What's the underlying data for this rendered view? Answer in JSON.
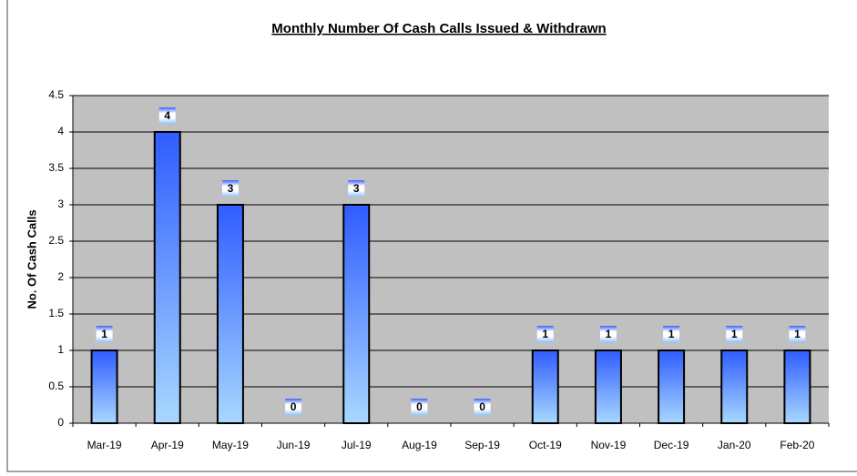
{
  "chart_data": {
    "type": "bar",
    "title": "Monthly Number Of Cash Calls Issued & Withdrawn",
    "y_label": "No. Of Cash Calls",
    "categories": [
      "Mar-19",
      "Apr-19",
      "May-19",
      "Jun-19",
      "Jul-19",
      "Aug-19",
      "Sep-19",
      "Oct-19",
      "Nov-19",
      "Dec-19",
      "Jan-20",
      "Feb-20"
    ],
    "values": [
      1,
      4,
      3,
      0,
      3,
      0,
      0,
      1,
      1,
      1,
      1,
      1
    ],
    "color": "#2f5cff",
    "ylim": [
      0,
      4.5
    ],
    "yticks": [
      0,
      0.5,
      1,
      1.5,
      2,
      2.5,
      3,
      3.5,
      4,
      4.5
    ],
    "grid": true
  }
}
